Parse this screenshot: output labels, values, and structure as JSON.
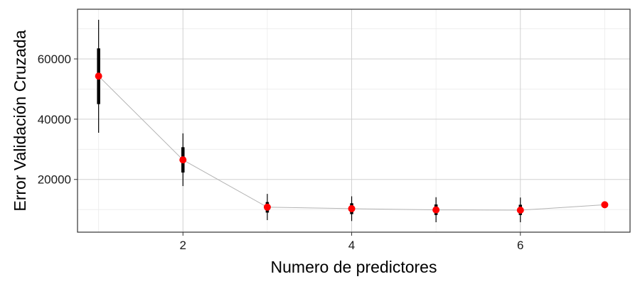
{
  "chart_data": {
    "type": "scatter",
    "title": "",
    "xlabel": "Numero de predictores",
    "ylabel": "Error Validación Cruzada",
    "xlim": [
      0.75,
      7.3
    ],
    "ylim": [
      2500,
      76500
    ],
    "x_major_ticks": [
      2,
      4,
      6
    ],
    "x_minor_ticks": [
      1,
      3,
      5,
      7
    ],
    "y_major_ticks": [
      20000,
      40000,
      60000
    ],
    "y_minor_ticks": [
      10000,
      30000,
      50000,
      70000
    ],
    "x_tick_labels": [
      "2",
      "4",
      "6"
    ],
    "y_tick_labels": [
      "20000",
      "40000",
      "60000"
    ],
    "grid": true,
    "series": [
      {
        "x": [
          1,
          2,
          3,
          4,
          5,
          6,
          7
        ],
        "y": [
          54300,
          26500,
          10800,
          10300,
          9900,
          9800,
          11600
        ],
        "inner_low": [
          45000,
          22300,
          9000,
          8500,
          8200,
          8200,
          null
        ],
        "inner_high": [
          63500,
          30700,
          12500,
          12100,
          11700,
          11600,
          null
        ],
        "outer_low": [
          35500,
          17800,
          6500,
          6200,
          5800,
          5800,
          null
        ],
        "outer_high": [
          73000,
          35300,
          15200,
          14400,
          14100,
          14000,
          null
        ]
      }
    ],
    "colors": {
      "point": "#ff0000",
      "line": "#b3b3b3",
      "interval": "#000000",
      "grid_major": "#d0d0d0",
      "grid_minor": "#ebebeb",
      "panel_border": "#333333"
    }
  }
}
